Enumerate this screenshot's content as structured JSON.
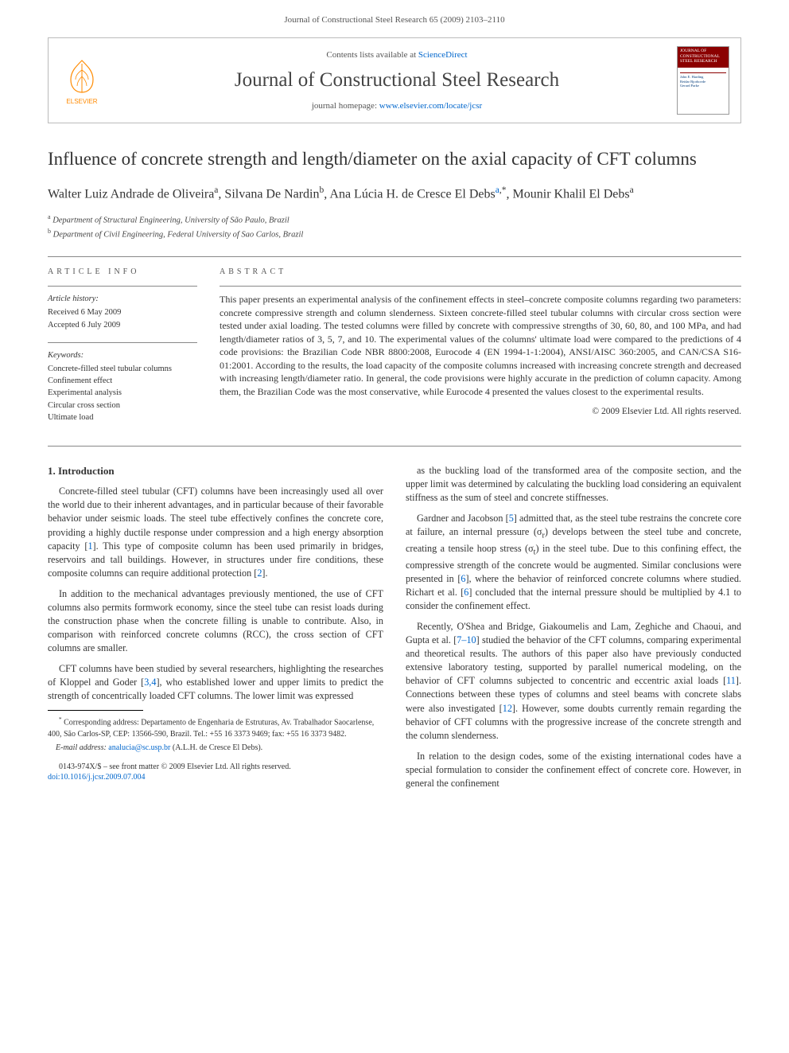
{
  "page_header": "Journal of Constructional Steel Research 65 (2009) 2103–2110",
  "banner": {
    "contents_prefix": "Contents lists available at ",
    "contents_link": "ScienceDirect",
    "journal_name": "Journal of Constructional Steel Research",
    "homepage_prefix": "journal homepage: ",
    "homepage_link": "www.elsevier.com/locate/jcsr",
    "cover_title": "JOURNAL OF CONSTRUCTIONAL STEEL RESEARCH",
    "logo_label": "Elsevier tree logo",
    "publisher": "ELSEVIER"
  },
  "title": "Influence of concrete strength and length/diameter on the axial capacity of CFT columns",
  "authors_html": "Walter Luiz Andrade de Oliveira<sup>a</sup>, Silvana De Nardin<sup>b</sup>, Ana Lúcia H. de Cresce El Debs<sup><a href='#'>a</a>,*</sup>, Mounir Khalil El Debs<sup>a</sup>",
  "affiliations": [
    {
      "sup": "a",
      "text": "Department of Structural Engineering, University of São Paulo, Brazil"
    },
    {
      "sup": "b",
      "text": "Department of Civil Engineering, Federal University of Sao Carlos, Brazil"
    }
  ],
  "article_info": {
    "heading": "ARTICLE INFO",
    "history_head": "Article history:",
    "received": "Received 6 May 2009",
    "accepted": "Accepted 6 July 2009",
    "keywords_head": "Keywords:",
    "keywords": [
      "Concrete-filled steel tubular columns",
      "Confinement effect",
      "Experimental analysis",
      "Circular cross section",
      "Ultimate load"
    ]
  },
  "abstract": {
    "heading": "ABSTRACT",
    "text": "This paper presents an experimental analysis of the confinement effects in steel–concrete composite columns regarding two parameters: concrete compressive strength and column slenderness. Sixteen concrete-filled steel tubular columns with circular cross section were tested under axial loading. The tested columns were filled by concrete with compressive strengths of 30, 60, 80, and 100 MPa, and had length/diameter ratios of 3, 5, 7, and 10. The experimental values of the columns' ultimate load were compared to the predictions of 4 code provisions: the Brazilian Code NBR 8800:2008, Eurocode 4 (EN 1994-1-1:2004), ANSI/AISC 360:2005, and CAN/CSA S16-01:2001. According to the results, the load capacity of the composite columns increased with increasing concrete strength and decreased with increasing length/diameter ratio. In general, the code provisions were highly accurate in the prediction of column capacity. Among them, the Brazilian Code was the most conservative, while Eurocode 4 presented the values closest to the experimental results.",
    "copyright": "© 2009 Elsevier Ltd. All rights reserved."
  },
  "body": {
    "section_title": "1. Introduction",
    "paragraphs": [
      "Concrete-filled steel tubular (CFT) columns have been increasingly used all over the world due to their inherent advantages, and in particular because of their favorable behavior under seismic loads. The steel tube effectively confines the concrete core, providing a highly ductile response under compression and a high energy absorption capacity [<a href='#'>1</a>]. This type of composite column has been used primarily in bridges, reservoirs and tall buildings. However, in structures under fire conditions, these composite columns can require additional protection [<a href='#'>2</a>].",
      "In addition to the mechanical advantages previously mentioned, the use of CFT columns also permits formwork economy, since the steel tube can resist loads during the construction phase when the concrete filling is unable to contribute. Also, in comparison with reinforced concrete columns (RCC), the cross section of CFT columns are smaller.",
      "CFT columns have been studied by several researchers, highlighting the researches of Kloppel and Goder [<a href='#'>3,4</a>], who established lower and upper limits to predict the strength of concentrically loaded CFT columns. The lower limit was expressed",
      "as the buckling load of the transformed area of the composite section, and the upper limit was determined by calculating the buckling load considering an equivalent stiffness as the sum of steel and concrete stiffnesses.",
      "Gardner and Jacobson [<a href='#'>5</a>] admitted that, as the steel tube restrains the concrete core at failure, an internal pressure (σ<sub>r</sub>) develops between the steel tube and concrete, creating a tensile hoop stress (σ<sub>t</sub>) in the steel tube. Due to this confining effect, the compressive strength of the concrete would be augmented. Similar conclusions were presented in [<a href='#'>6</a>], where the behavior of reinforced concrete columns where studied. Richart et al. [<a href='#'>6</a>] concluded that the internal pressure should be multiplied by 4.1 to consider the confinement effect.",
      "Recently, O'Shea and Bridge, Giakoumelis and Lam, Zeghiche and Chaoui, and Gupta et al. [<a href='#'>7–10</a>] studied the behavior of the CFT columns, comparing experimental and theoretical results. The authors of this paper also have previously conducted extensive laboratory testing, supported by parallel numerical modeling, on the behavior of CFT columns subjected to concentric and eccentric axial loads [<a href='#'>11</a>]. Connections between these types of columns and steel beams with concrete slabs were also investigated [<a href='#'>12</a>]. However, some doubts currently remain regarding the behavior of CFT columns with the progressive increase of the concrete strength and the column slenderness.",
      "In relation to the design codes, some of the existing international codes have a special formulation to consider the confinement effect of concrete core. However, in general the confinement"
    ]
  },
  "footnote": {
    "corresponding": "Corresponding address: Departamento de Engenharia de Estruturas, Av. Trabalhador Saocarlense, 400, São Carlos-SP, CEP: 13566-590, Brazil. Tel.: +55 16 3373 9469; fax: +55 16 3373 9482.",
    "email_label": "E-mail address:",
    "email": "analucia@sc.usp.br",
    "email_who": "(A.L.H. de Cresce El Debs)."
  },
  "copyright_block": {
    "line1": "0143-974X/$ – see front matter © 2009 Elsevier Ltd. All rights reserved.",
    "line2": "doi:10.1016/j.jcsr.2009.07.004"
  },
  "colors": {
    "link": "#0066cc",
    "text": "#333333",
    "rule": "#888888",
    "cover_red": "#8b0000",
    "elsevier_orange": "#ff8a00"
  }
}
